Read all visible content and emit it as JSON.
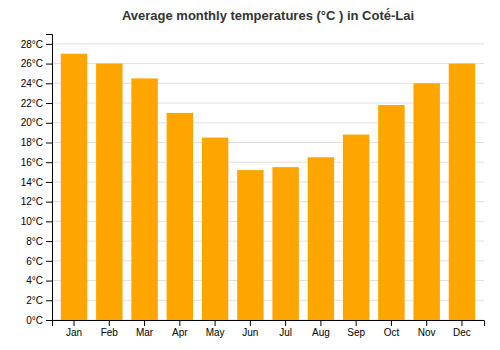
{
  "chart_data": {
    "type": "bar",
    "title": "Average monthly temperatures (°C ) in Coté́-Lai",
    "categories": [
      "Jan",
      "Feb",
      "Mar",
      "Apr",
      "May",
      "Jun",
      "Jul",
      "Aug",
      "Sep",
      "Oct",
      "Nov",
      "Dec"
    ],
    "values": [
      27.0,
      26.0,
      24.5,
      21.0,
      18.5,
      15.2,
      15.5,
      16.5,
      18.8,
      21.8,
      24.0,
      26.0
    ],
    "color": "#FFA500",
    "ylim": [
      0,
      29
    ],
    "yticks": [
      {
        "value": 0,
        "label": "0°C"
      },
      {
        "value": 2,
        "label": "2°C"
      },
      {
        "value": 4,
        "label": "4°C"
      },
      {
        "value": 6,
        "label": "6°C"
      },
      {
        "value": 8,
        "label": "8°C"
      },
      {
        "value": 10,
        "label": "10°C"
      },
      {
        "value": 12,
        "label": "12°C"
      },
      {
        "value": 14,
        "label": "14°C"
      },
      {
        "value": 16,
        "label": "16°C"
      },
      {
        "value": 18,
        "label": "18°C"
      },
      {
        "value": 20,
        "label": "20°C"
      },
      {
        "value": 22,
        "label": "22°C"
      },
      {
        "value": 24,
        "label": "24°C"
      },
      {
        "value": 26,
        "label": "26°C"
      },
      {
        "value": 28,
        "label": "28°C"
      }
    ],
    "grid": true
  }
}
